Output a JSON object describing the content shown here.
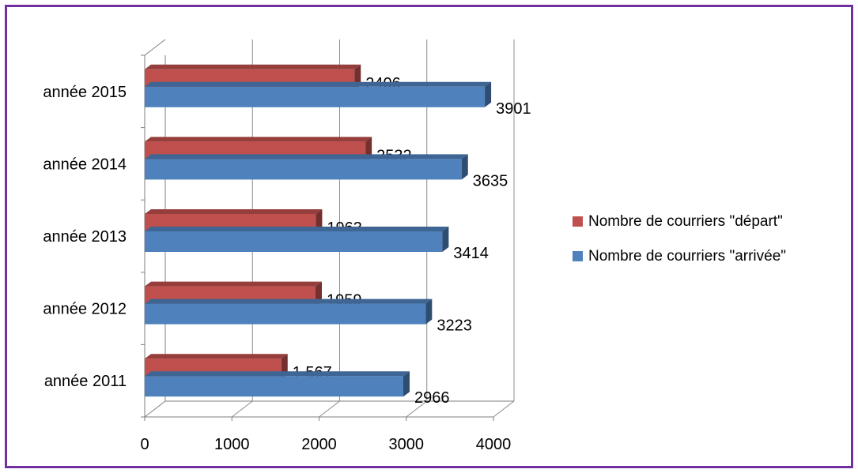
{
  "chart_data": {
    "type": "bar",
    "orientation": "horizontal",
    "style": "3d-clustered",
    "categories": [
      "année 2011",
      "année 2012",
      "année 2013",
      "année 2014",
      "année 2015"
    ],
    "series": [
      {
        "name": "Nombre de courriers \"départ\"",
        "color": "#c0504d",
        "values": [
          1567,
          1959,
          1963,
          2532,
          2406
        ],
        "labels": [
          "1 567",
          "1959",
          "1963",
          "2532",
          "2406"
        ]
      },
      {
        "name": "Nombre de courriers \"arrivée\"",
        "color": "#4f81bd",
        "values": [
          2966,
          3223,
          3414,
          3635,
          3901
        ],
        "labels": [
          "2966",
          "3223",
          "3414",
          "3635",
          "3901"
        ]
      }
    ],
    "xlim": [
      0,
      4000
    ],
    "xticks": [
      "0",
      "1000",
      "2000",
      "3000",
      "4000"
    ],
    "grid": true,
    "legend_position": "right",
    "border_color": "#7030a0"
  }
}
